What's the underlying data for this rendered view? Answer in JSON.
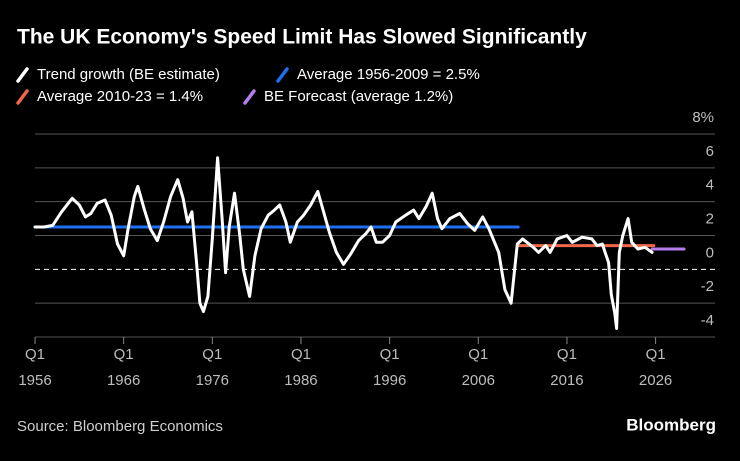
{
  "chart_data": {
    "type": "line",
    "title": "The UK Economy's Speed Limit Has Slowed Significantly",
    "source": "Source: Bloomberg Economics",
    "brand": "Bloomberg",
    "xlim": [
      1956,
      2032.7
    ],
    "xticks": [
      {
        "value": 1956,
        "label": [
          "Q1",
          "1956"
        ]
      },
      {
        "value": 1966,
        "label": [
          "Q1",
          "1966"
        ]
      },
      {
        "value": 1976,
        "label": [
          "Q1",
          "1976"
        ]
      },
      {
        "value": 1986,
        "label": [
          "Q1",
          "1986"
        ]
      },
      {
        "value": 1996,
        "label": [
          "Q1",
          "1996"
        ]
      },
      {
        "value": 2006,
        "label": [
          "Q1",
          "2006"
        ]
      },
      {
        "value": 2016,
        "label": [
          "Q1",
          "2016"
        ]
      },
      {
        "value": 2026,
        "label": [
          "Q1",
          "2026"
        ]
      }
    ],
    "ylim": [
      -4,
      8
    ],
    "yticks": [
      {
        "value": 8,
        "label": "8%"
      },
      6,
      4,
      2,
      0,
      -2,
      -4
    ],
    "grid": true,
    "series": [
      {
        "name": "Trend growth (BE estimate)",
        "color": "#ffffff",
        "x": [
          1956,
          1957,
          1958,
          1959,
          1960.2,
          1961,
          1961.7,
          1962.3,
          1963,
          1963.9,
          1964.6,
          1965.3,
          1966,
          1966.5,
          1967.2,
          1967.6,
          1968.3,
          1969,
          1969.8,
          1970.5,
          1971.3,
          1972.1,
          1972.7,
          1973.2,
          1973.7,
          1974.2,
          1974.6,
          1975,
          1975.5,
          1976,
          1976.6,
          1977.1,
          1977.5,
          1977.9,
          1978.5,
          1979.1,
          1979.5,
          1980.2,
          1980.8,
          1981.5,
          1982.3,
          1983,
          1983.6,
          1984.3,
          1984.8,
          1985.6,
          1986.3,
          1987.1,
          1987.9,
          1988.5,
          1989.2,
          1990,
          1990.8,
          1991.6,
          1992.5,
          1993.3,
          1993.9,
          1994.5,
          1995.2,
          1996,
          1996.7,
          1997.8,
          1998.7,
          1999.3,
          2000.1,
          2000.8,
          2001.4,
          2001.9,
          2002.8,
          2003.9,
          2004.8,
          2005.6,
          2006.5,
          2007.2,
          2008.3,
          2009,
          2009.7,
          2010.4,
          2011,
          2012.2,
          2012.8,
          2013.6,
          2014.1,
          2014.9,
          2016,
          2016.6,
          2017.7,
          2018.8,
          2019.4,
          2020,
          2020.3,
          2020.7,
          2021,
          2021.4,
          2021.6,
          2021.9,
          2022.3,
          2022.9,
          2023.3,
          2024,
          2024.8,
          2025.6
        ],
        "values": [
          2.5,
          2.5,
          2.6,
          3.4,
          4.2,
          3.8,
          3.1,
          3.3,
          3.9,
          4.1,
          3.2,
          1.5,
          0.8,
          2.4,
          4.3,
          4.9,
          3.6,
          2.4,
          1.7,
          2.8,
          4.3,
          5.3,
          4.2,
          2.8,
          3.4,
          0.5,
          -2.0,
          -2.5,
          -1.6,
          1.8,
          6.6,
          3.0,
          -0.2,
          2.5,
          4.5,
          2.0,
          0.0,
          -1.6,
          0.8,
          2.4,
          3.2,
          3.5,
          3.8,
          2.8,
          1.6,
          2.8,
          3.2,
          3.8,
          4.6,
          3.5,
          2.2,
          1.0,
          0.3,
          0.9,
          1.7,
          2.1,
          2.5,
          1.6,
          1.6,
          2.0,
          2.8,
          3.2,
          3.5,
          3.0,
          3.7,
          4.5,
          3.0,
          2.4,
          3.0,
          3.3,
          2.7,
          2.3,
          3.1,
          2.4,
          1.0,
          -1.2,
          -2.0,
          1.5,
          1.8,
          1.3,
          1.0,
          1.4,
          1.0,
          1.8,
          2.0,
          1.6,
          1.9,
          1.8,
          1.4,
          1.5,
          1.0,
          0.4,
          -1.5,
          -2.6,
          -3.5,
          1.0,
          2.0,
          3.0,
          1.6,
          1.2,
          1.3,
          1.0
        ]
      },
      {
        "name": "Average 1956-2009 = 2.5%",
        "color": "#1f6ff2",
        "x": [
          1956,
          2010.5
        ],
        "values": [
          2.5,
          2.5
        ]
      },
      {
        "name": "Average 2010-23 = 1.4%",
        "color": "#f2674a",
        "x": [
          2010.5,
          2025.8
        ],
        "values": [
          1.4,
          1.4
        ]
      },
      {
        "name": "BE Forecast (average 1.2%)",
        "color": "#b57ef0",
        "x": [
          2025.6,
          2029.2
        ],
        "values": [
          1.2,
          1.2
        ]
      }
    ]
  }
}
